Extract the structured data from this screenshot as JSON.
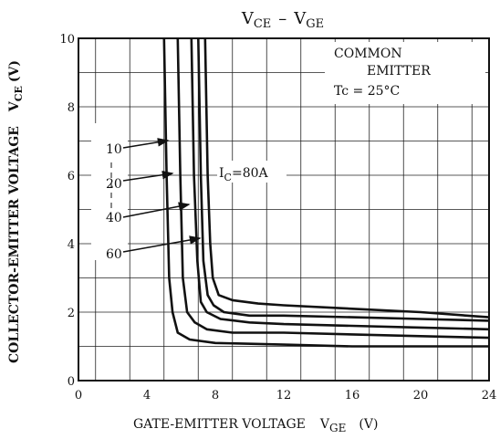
{
  "chart_data": {
    "type": "line",
    "title": {
      "main": "V",
      "sub1": "CE",
      "dash": "–",
      "main2": "V",
      "sub2": "GE"
    },
    "xlabel": {
      "text": "GATE-EMITTER VOLTAGE",
      "sym": "V",
      "sub": "GE",
      "unit": "(V)"
    },
    "ylabel": {
      "text": "COLLECTOR-EMITTER VOLTAGE",
      "sym": "V",
      "sub": "CE",
      "unit": "(V)"
    },
    "xlim": [
      0,
      24
    ],
    "ylim": [
      0,
      10
    ],
    "x_ticks": [
      0,
      4,
      8,
      12,
      16,
      20,
      24
    ],
    "y_ticks": [
      0,
      2,
      4,
      6,
      8,
      10
    ],
    "grid": true,
    "annotation": {
      "line1": "COMMON",
      "line2": "EMITTER",
      "line3": "Tc = 25°C"
    },
    "series_label_prefix": {
      "sym": "I",
      "sub": "C",
      "eq": "="
    },
    "series": [
      {
        "name": "10",
        "x": [
          5.0,
          5.15,
          5.3,
          5.5,
          5.8,
          6.5,
          8,
          12,
          16,
          20,
          24
        ],
        "y": [
          10,
          6,
          3,
          2,
          1.4,
          1.2,
          1.1,
          1.05,
          1.0,
          1.0,
          1.0
        ]
      },
      {
        "name": "20",
        "x": [
          5.8,
          5.95,
          6.1,
          6.35,
          6.8,
          7.5,
          9,
          12,
          16,
          20,
          24
        ],
        "y": [
          10,
          6,
          3,
          2,
          1.7,
          1.5,
          1.4,
          1.4,
          1.35,
          1.3,
          1.25
        ]
      },
      {
        "name": "40",
        "x": [
          6.6,
          6.75,
          6.95,
          7.15,
          7.5,
          8.3,
          10,
          12,
          16,
          20,
          24
        ],
        "y": [
          10,
          6,
          3.5,
          2.3,
          2.0,
          1.8,
          1.7,
          1.65,
          1.6,
          1.55,
          1.5
        ]
      },
      {
        "name": "60",
        "x": [
          7.4,
          7.55,
          7.7,
          7.85,
          8.2,
          9.0,
          10.5,
          12,
          16,
          20,
          24
        ],
        "y": [
          10,
          6,
          4,
          3.0,
          2.5,
          2.35,
          2.25,
          2.2,
          2.1,
          2.0,
          1.85
        ]
      },
      {
        "name": "80A",
        "x": [
          7.0,
          7.15,
          7.3,
          7.55,
          7.9,
          8.5,
          10,
          12,
          16,
          20,
          24
        ],
        "y": [
          10,
          6,
          3.5,
          2.5,
          2.2,
          2.0,
          1.9,
          1.9,
          1.85,
          1.8,
          1.75
        ]
      }
    ]
  }
}
